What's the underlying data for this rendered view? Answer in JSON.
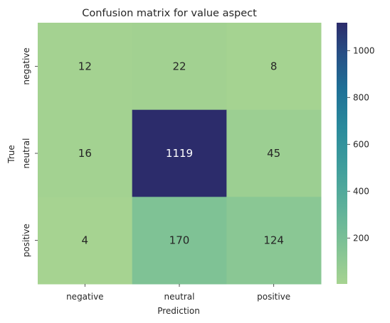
{
  "chart_data": {
    "type": "heatmap",
    "title": "Confusion matrix for value aspect",
    "xlabel": "Prediction",
    "ylabel": "True",
    "x_categories": [
      "negative",
      "neutral",
      "positive"
    ],
    "y_categories": [
      "negative",
      "neutral",
      "positive"
    ],
    "values": [
      [
        12,
        22,
        8
      ],
      [
        16,
        1119,
        45
      ],
      [
        4,
        170,
        124
      ]
    ],
    "colormap": "crest",
    "vmin": 4,
    "vmax": 1119,
    "colorbar_ticks": [
      200,
      400,
      600,
      800,
      1000
    ]
  }
}
